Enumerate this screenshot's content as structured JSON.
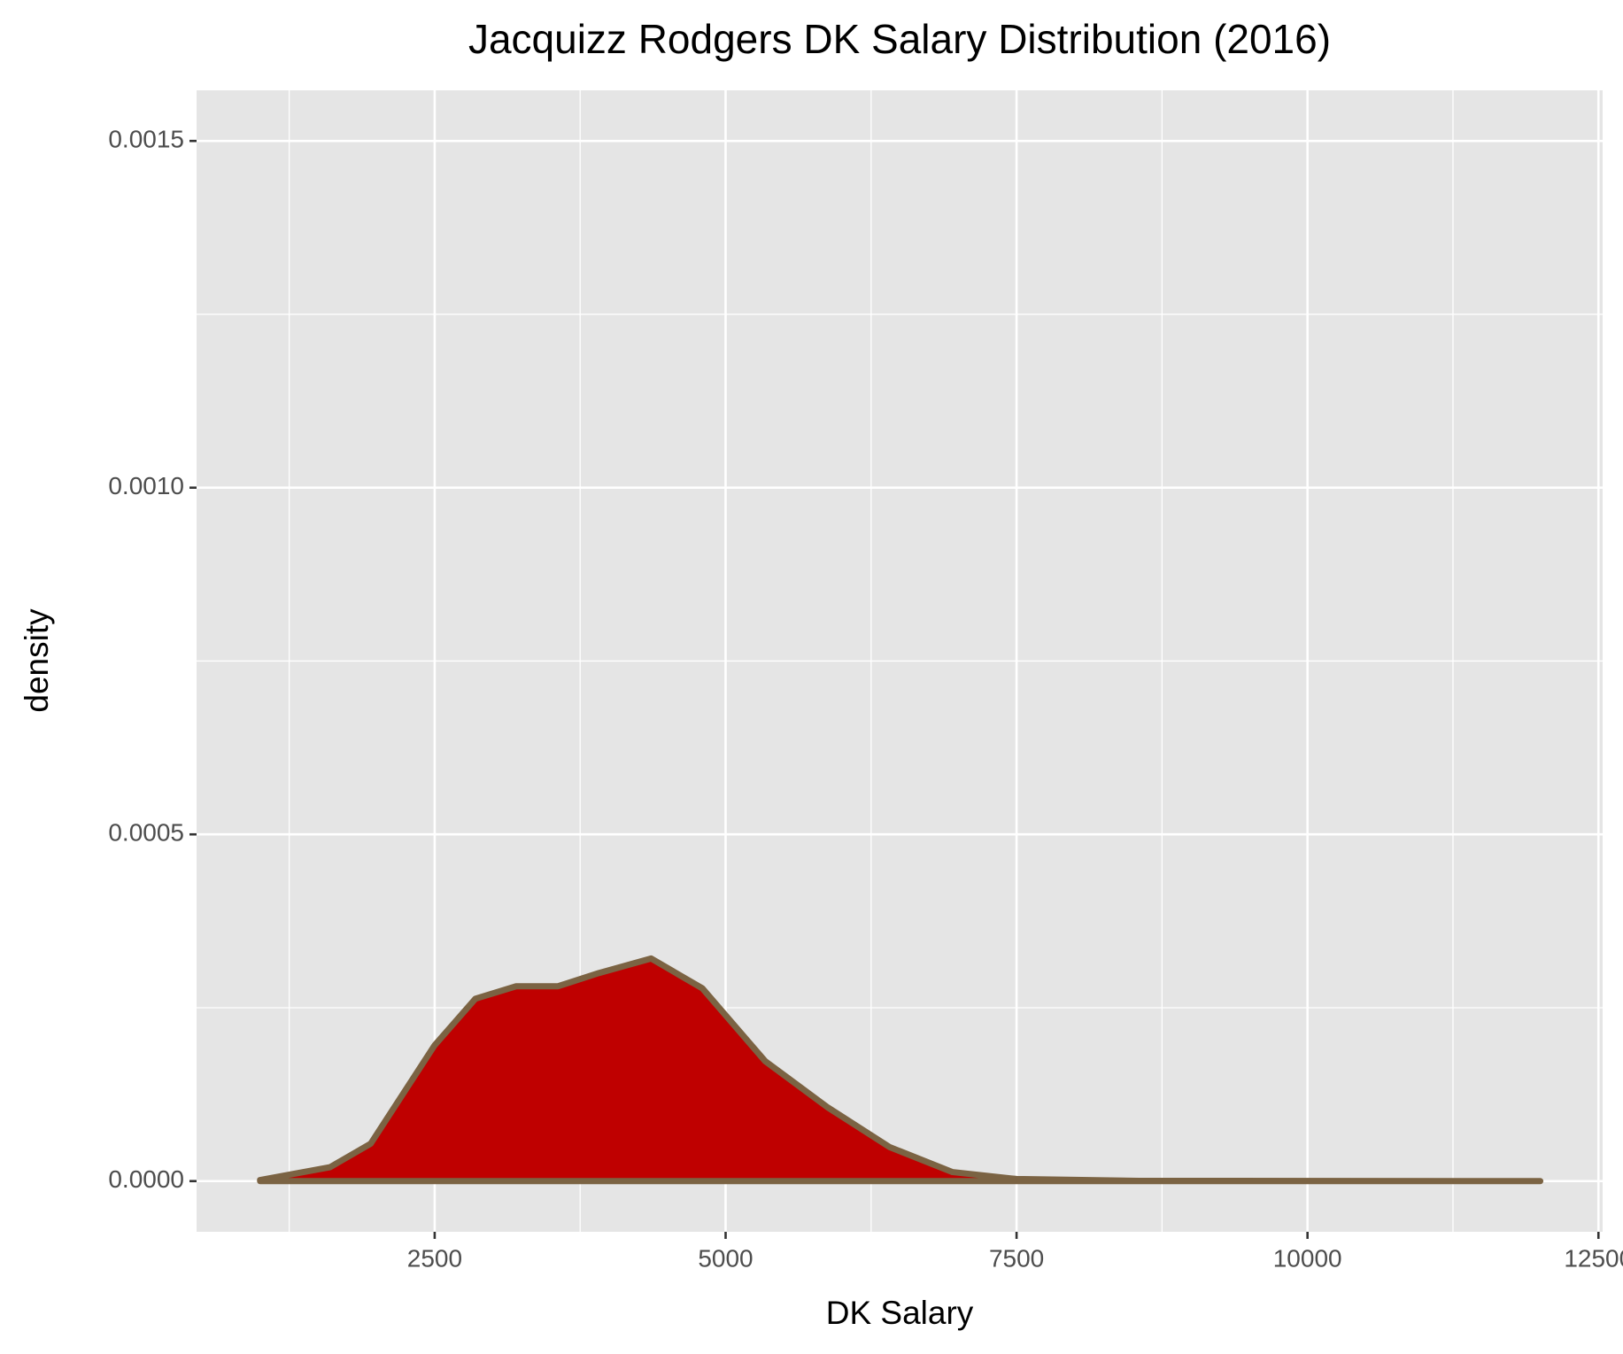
{
  "chart_data": {
    "type": "density",
    "title": "Jacquizz Rodgers DK Salary Distribution (2016)",
    "x_label": "DK Salary",
    "y_label": "density",
    "x": [
      1000,
      1600,
      1950,
      2500,
      2850,
      3200,
      3560,
      3910,
      4360,
      4800,
      5340,
      5880,
      6410,
      6950,
      7500,
      8550,
      12000
    ],
    "values": [
      1.5e-06,
      2e-05,
      5.4e-05,
      0.000196,
      0.000263,
      0.000281,
      0.000281,
      0.0003,
      0.000321,
      0.000278,
      0.000173,
      0.000106,
      4.9e-05,
      1.3e-05,
      3e-06,
      4e-07,
      0
    ],
    "fill_color": "#bf0000",
    "line_color": "#7b6343",
    "xlim": [
      454,
      12536
    ],
    "ylim": [
      -7.31e-05,
      0.001573
    ],
    "xticks": [
      2500,
      5000,
      7500,
      10000,
      12500
    ],
    "x_minor_ticks": [
      1250,
      3750,
      6250,
      8750,
      11250
    ],
    "yticks": [
      {
        "value": 0,
        "label": "0.0000"
      },
      {
        "value": 0.0005,
        "label": "0.0005"
      },
      {
        "value": 0.001,
        "label": "0.0010"
      },
      {
        "value": 0.0015,
        "label": "0.0015"
      }
    ],
    "y_minor_ticks": [
      0.00025,
      0.00075,
      0.00125
    ],
    "grid": true
  }
}
